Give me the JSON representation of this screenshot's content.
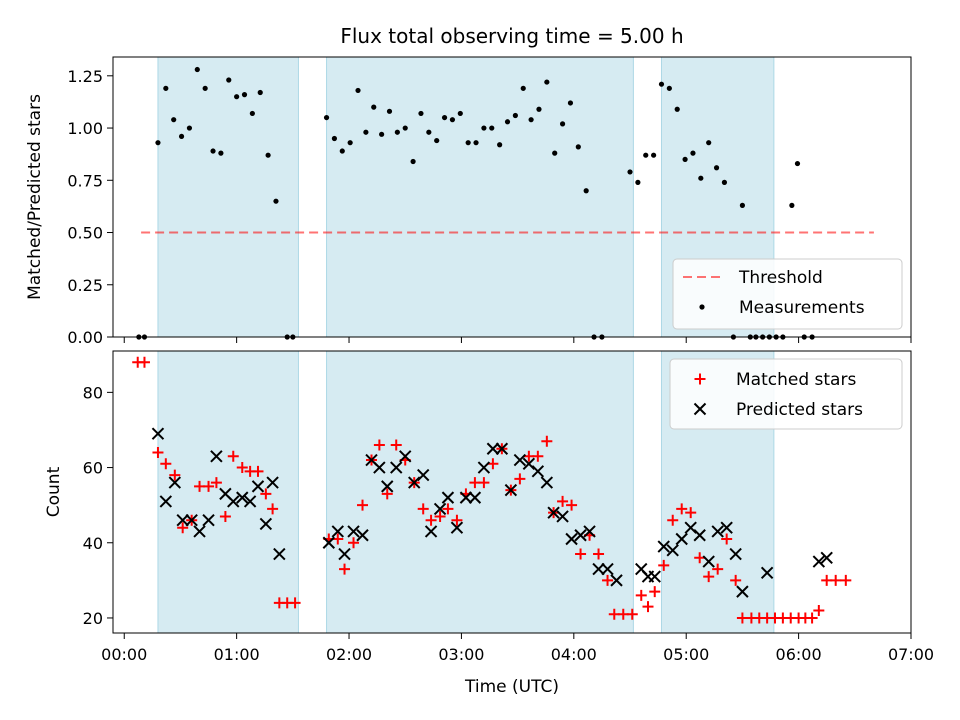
{
  "figure_title": "Flux total observing time = 5.00 h",
  "colors": {
    "band": "#add8e6",
    "threshold": "#ff0000",
    "matched": "#ff0000",
    "predicted": "#000000",
    "measurements": "#000000"
  },
  "chart_data": [
    {
      "type": "scatter",
      "ylabel": "Matched/Predicted stars",
      "xlim": [
        -0.1,
        7.0
      ],
      "ylim": [
        0,
        1.34
      ],
      "yticks": [
        "0.00",
        "0.25",
        "0.50",
        "0.75",
        "1.00",
        "1.25"
      ],
      "legend_position": "lower-right",
      "shaded_intervals": [
        [
          0.3,
          1.55
        ],
        [
          1.8,
          4.53
        ],
        [
          4.78,
          5.78
        ]
      ],
      "threshold": {
        "name": "Threshold",
        "value": 0.5,
        "x_range": [
          0.15,
          6.67
        ]
      },
      "series": [
        {
          "name": "Measurements",
          "points": [
            [
              0.13,
              0
            ],
            [
              0.18,
              0
            ],
            [
              0.3,
              0.93
            ],
            [
              0.37,
              1.19
            ],
            [
              0.44,
              1.04
            ],
            [
              0.51,
              0.96
            ],
            [
              0.58,
              1.0
            ],
            [
              0.65,
              1.28
            ],
            [
              0.72,
              1.19
            ],
            [
              0.79,
              0.89
            ],
            [
              0.86,
              0.88
            ],
            [
              0.93,
              1.23
            ],
            [
              1.0,
              1.15
            ],
            [
              1.07,
              1.16
            ],
            [
              1.14,
              1.07
            ],
            [
              1.21,
              1.17
            ],
            [
              1.28,
              0.87
            ],
            [
              1.35,
              0.65
            ],
            [
              1.45,
              0
            ],
            [
              1.5,
              0
            ],
            [
              1.8,
              1.05
            ],
            [
              1.87,
              0.95
            ],
            [
              1.94,
              0.89
            ],
            [
              2.01,
              0.93
            ],
            [
              2.08,
              1.18
            ],
            [
              2.15,
              0.98
            ],
            [
              2.22,
              1.1
            ],
            [
              2.29,
              0.97
            ],
            [
              2.36,
              1.08
            ],
            [
              2.43,
              0.98
            ],
            [
              2.5,
              1.0
            ],
            [
              2.57,
              0.84
            ],
            [
              2.64,
              1.07
            ],
            [
              2.71,
              0.98
            ],
            [
              2.78,
              0.94
            ],
            [
              2.85,
              1.05
            ],
            [
              2.92,
              1.04
            ],
            [
              2.99,
              1.07
            ],
            [
              3.06,
              0.93
            ],
            [
              3.13,
              0.93
            ],
            [
              3.2,
              1.0
            ],
            [
              3.27,
              1.0
            ],
            [
              3.34,
              0.92
            ],
            [
              3.41,
              1.03
            ],
            [
              3.48,
              1.06
            ],
            [
              3.55,
              1.19
            ],
            [
              3.62,
              1.04
            ],
            [
              3.69,
              1.09
            ],
            [
              3.76,
              1.22
            ],
            [
              3.83,
              0.88
            ],
            [
              3.9,
              1.02
            ],
            [
              3.97,
              1.12
            ],
            [
              4.04,
              0.91
            ],
            [
              4.11,
              0.7
            ],
            [
              4.18,
              0
            ],
            [
              4.25,
              0
            ],
            [
              4.5,
              0.79
            ],
            [
              4.57,
              0.74
            ],
            [
              4.64,
              0.87
            ],
            [
              4.71,
              0.87
            ],
            [
              4.78,
              1.21
            ],
            [
              4.85,
              1.19
            ],
            [
              4.92,
              1.09
            ],
            [
              4.99,
              0.85
            ],
            [
              5.06,
              0.88
            ],
            [
              5.13,
              0.76
            ],
            [
              5.2,
              0.93
            ],
            [
              5.27,
              0.81
            ],
            [
              5.34,
              0.74
            ],
            [
              5.42,
              0
            ],
            [
              5.5,
              0.63
            ],
            [
              5.57,
              0
            ],
            [
              5.62,
              0
            ],
            [
              5.68,
              0
            ],
            [
              5.74,
              0
            ],
            [
              5.8,
              0
            ],
            [
              5.86,
              0
            ],
            [
              5.94,
              0.63
            ],
            [
              5.99,
              0.83
            ],
            [
              6.05,
              0
            ],
            [
              6.12,
              0
            ]
          ]
        }
      ]
    },
    {
      "type": "scatter",
      "xlabel": "Time (UTC)",
      "ylabel": "Count",
      "xlim": [
        -0.1,
        7.0
      ],
      "ylim": [
        16,
        91
      ],
      "xticks": [
        "00:00",
        "01:00",
        "02:00",
        "03:00",
        "04:00",
        "05:00",
        "06:00",
        "07:00"
      ],
      "yticks": [
        "20",
        "40",
        "60",
        "80"
      ],
      "legend_position": "upper-right",
      "shaded_intervals": [
        [
          0.3,
          1.55
        ],
        [
          1.8,
          4.53
        ],
        [
          4.78,
          5.78
        ]
      ],
      "series": [
        {
          "name": "Matched stars",
          "marker": "plus",
          "points": [
            [
              0.12,
              88
            ],
            [
              0.18,
              88
            ],
            [
              0.3,
              64
            ],
            [
              0.37,
              61
            ],
            [
              0.45,
              58
            ],
            [
              0.52,
              44
            ],
            [
              0.6,
              46
            ],
            [
              0.67,
              55
            ],
            [
              0.75,
              55
            ],
            [
              0.82,
              56
            ],
            [
              0.9,
              47
            ],
            [
              0.97,
              63
            ],
            [
              1.05,
              60
            ],
            [
              1.12,
              59
            ],
            [
              1.19,
              59
            ],
            [
              1.26,
              53
            ],
            [
              1.32,
              49
            ],
            [
              1.38,
              24
            ],
            [
              1.45,
              24
            ],
            [
              1.52,
              24
            ],
            [
              1.82,
              41
            ],
            [
              1.9,
              41
            ],
            [
              1.96,
              33
            ],
            [
              2.04,
              40
            ],
            [
              2.12,
              50
            ],
            [
              2.2,
              62
            ],
            [
              2.27,
              66
            ],
            [
              2.34,
              53
            ],
            [
              2.42,
              66
            ],
            [
              2.5,
              62
            ],
            [
              2.58,
              56
            ],
            [
              2.66,
              49
            ],
            [
              2.73,
              46
            ],
            [
              2.81,
              47
            ],
            [
              2.88,
              49
            ],
            [
              2.96,
              46
            ],
            [
              3.04,
              53
            ],
            [
              3.12,
              56
            ],
            [
              3.2,
              56
            ],
            [
              3.28,
              61
            ],
            [
              3.36,
              65
            ],
            [
              3.44,
              54
            ],
            [
              3.52,
              57
            ],
            [
              3.6,
              63
            ],
            [
              3.68,
              63
            ],
            [
              3.76,
              67
            ],
            [
              3.82,
              48
            ],
            [
              3.9,
              51
            ],
            [
              3.98,
              50
            ],
            [
              4.06,
              37
            ],
            [
              4.14,
              42
            ],
            [
              4.22,
              37
            ],
            [
              4.3,
              30
            ],
            [
              4.36,
              21
            ],
            [
              4.44,
              21
            ],
            [
              4.52,
              21
            ],
            [
              4.6,
              26
            ],
            [
              4.66,
              23
            ],
            [
              4.72,
              27
            ],
            [
              4.8,
              34
            ],
            [
              4.88,
              46
            ],
            [
              4.96,
              49
            ],
            [
              5.04,
              48
            ],
            [
              5.12,
              36
            ],
            [
              5.2,
              31
            ],
            [
              5.28,
              33
            ],
            [
              5.36,
              41
            ],
            [
              5.44,
              30
            ],
            [
              5.5,
              20
            ],
            [
              5.58,
              20
            ],
            [
              5.65,
              20
            ],
            [
              5.72,
              20
            ],
            [
              5.79,
              20
            ],
            [
              5.86,
              20
            ],
            [
              5.93,
              20
            ],
            [
              6.0,
              20
            ],
            [
              6.06,
              20
            ],
            [
              6.12,
              20
            ],
            [
              6.18,
              22
            ],
            [
              6.25,
              30
            ],
            [
              6.33,
              30
            ],
            [
              6.42,
              30
            ]
          ]
        },
        {
          "name": "Predicted stars",
          "marker": "x",
          "points": [
            [
              0.3,
              69
            ],
            [
              0.37,
              51
            ],
            [
              0.45,
              56
            ],
            [
              0.52,
              46
            ],
            [
              0.6,
              46
            ],
            [
              0.67,
              43
            ],
            [
              0.75,
              46
            ],
            [
              0.82,
              63
            ],
            [
              0.9,
              53
            ],
            [
              0.97,
              51
            ],
            [
              1.05,
              52
            ],
            [
              1.12,
              51
            ],
            [
              1.19,
              55
            ],
            [
              1.26,
              45
            ],
            [
              1.32,
              56
            ],
            [
              1.38,
              37
            ],
            [
              1.82,
              40
            ],
            [
              1.9,
              43
            ],
            [
              1.96,
              37
            ],
            [
              2.04,
              43
            ],
            [
              2.12,
              42
            ],
            [
              2.2,
              62
            ],
            [
              2.27,
              60
            ],
            [
              2.34,
              55
            ],
            [
              2.42,
              60
            ],
            [
              2.5,
              63
            ],
            [
              2.58,
              56
            ],
            [
              2.66,
              58
            ],
            [
              2.73,
              43
            ],
            [
              2.81,
              49
            ],
            [
              2.88,
              52
            ],
            [
              2.96,
              44
            ],
            [
              3.04,
              52
            ],
            [
              3.12,
              52
            ],
            [
              3.2,
              60
            ],
            [
              3.28,
              65
            ],
            [
              3.36,
              65
            ],
            [
              3.44,
              54
            ],
            [
              3.52,
              62
            ],
            [
              3.6,
              61
            ],
            [
              3.68,
              59
            ],
            [
              3.76,
              56
            ],
            [
              3.82,
              48
            ],
            [
              3.9,
              47
            ],
            [
              3.98,
              41
            ],
            [
              4.06,
              42
            ],
            [
              4.14,
              43
            ],
            [
              4.22,
              33
            ],
            [
              4.3,
              33
            ],
            [
              4.38,
              30
            ],
            [
              4.6,
              33
            ],
            [
              4.66,
              31
            ],
            [
              4.72,
              31
            ],
            [
              4.8,
              39
            ],
            [
              4.88,
              38
            ],
            [
              4.96,
              41
            ],
            [
              5.04,
              44
            ],
            [
              5.12,
              42
            ],
            [
              5.2,
              35
            ],
            [
              5.28,
              43
            ],
            [
              5.36,
              44
            ],
            [
              5.44,
              37
            ],
            [
              5.5,
              27
            ],
            [
              5.72,
              32
            ],
            [
              6.18,
              35
            ],
            [
              6.25,
              36
            ]
          ]
        }
      ]
    }
  ]
}
